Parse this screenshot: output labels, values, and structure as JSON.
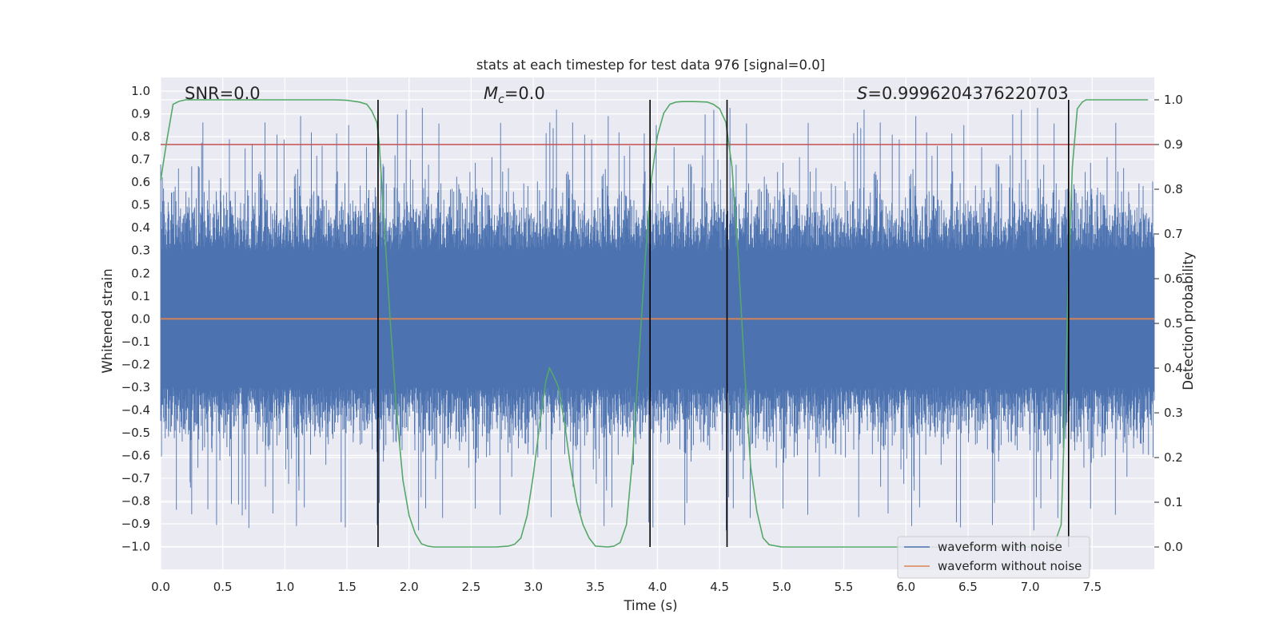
{
  "chart_data": {
    "type": "line",
    "title": "stats at each timestep for test data 976 [signal=0.0]",
    "xlabel": "Time (s)",
    "ylabel_left": "Whitened strain",
    "ylabel_right": "Detection probability",
    "xlim": [
      0.0,
      8.0
    ],
    "ylim_left": [
      -1.1,
      1.06
    ],
    "ylim_right": [
      -0.05,
      1.05
    ],
    "x_ticks": [
      "0.0",
      "0.5",
      "1.0",
      "1.5",
      "2.0",
      "2.5",
      "3.0",
      "3.5",
      "4.0",
      "4.5",
      "5.0",
      "5.5",
      "6.0",
      "6.5",
      "7.0",
      "7.5"
    ],
    "y_ticks_left": [
      "1.0",
      "0.9",
      "0.8",
      "0.7",
      "0.6",
      "0.5",
      "0.4",
      "0.3",
      "0.2",
      "0.1",
      "0.0",
      "−0.1",
      "−0.2",
      "−0.3",
      "−0.4",
      "−0.5",
      "−0.6",
      "−0.7",
      "−0.8",
      "−0.9",
      "−1.0"
    ],
    "y_ticks_right": [
      "1.0",
      "0.9",
      "0.8",
      "0.7",
      "0.6",
      "0.5",
      "0.4",
      "0.3",
      "0.2",
      "0.1",
      "0.0"
    ],
    "grid": true,
    "legend_position": "lower-right",
    "annotations": {
      "snr": "SNR=0.0",
      "mc_symbol": "M",
      "mc_sub": "c",
      "mc_value": "=0.0",
      "s_symbol": "S",
      "s_value": "=0.9996204376220703"
    },
    "series": [
      {
        "name": "waveform with noise",
        "color": "#4c72b0",
        "style": "dense noise, typical |strain| ~0.4, peaks up to ~0.95 and down to ~-0.99"
      },
      {
        "name": "waveform without noise",
        "color": "#dd8452",
        "values_constant": 0.0
      }
    ],
    "threshold": {
      "axis": "right",
      "value": 0.9,
      "color": "#c44e52"
    },
    "trigger_lines_x": [
      1.75,
      3.94,
      4.56,
      7.31
    ],
    "trigger_line_color": "#000000",
    "detection_probability": {
      "color": "#55a868",
      "x": [
        0.0,
        0.05,
        0.1,
        0.15,
        0.2,
        0.3,
        0.5,
        0.8,
        1.0,
        1.2,
        1.4,
        1.5,
        1.6,
        1.66,
        1.7,
        1.74,
        1.76,
        1.8,
        1.85,
        1.9,
        1.95,
        2.0,
        2.05,
        2.1,
        2.15,
        2.2,
        2.3,
        2.5,
        2.7,
        2.8,
        2.85,
        2.9,
        2.95,
        3.0,
        3.05,
        3.1,
        3.13,
        3.15,
        3.2,
        3.25,
        3.3,
        3.35,
        3.4,
        3.45,
        3.5,
        3.6,
        3.65,
        3.7,
        3.75,
        3.8,
        3.85,
        3.9,
        3.95,
        4.0,
        4.05,
        4.1,
        4.15,
        4.2,
        4.3,
        4.4,
        4.45,
        4.5,
        4.55,
        4.6,
        4.65,
        4.7,
        4.75,
        4.8,
        4.85,
        4.9,
        5.0,
        5.5,
        6.0,
        6.5,
        7.0,
        7.1,
        7.2,
        7.25,
        7.28,
        7.31,
        7.34,
        7.38,
        7.42,
        7.45,
        7.5,
        7.7,
        7.95
      ],
      "y": [
        0.82,
        0.91,
        0.99,
        0.997,
        1.0,
        1.0,
        1.0,
        1.0,
        1.0,
        1.0,
        1.0,
        0.999,
        0.995,
        0.99,
        0.975,
        0.95,
        0.9,
        0.72,
        0.5,
        0.3,
        0.15,
        0.07,
        0.03,
        0.007,
        0.002,
        0.0,
        0.0,
        0.0,
        0.0,
        0.002,
        0.006,
        0.02,
        0.07,
        0.16,
        0.27,
        0.37,
        0.4,
        0.39,
        0.36,
        0.28,
        0.18,
        0.1,
        0.05,
        0.02,
        0.002,
        0.0,
        0.002,
        0.01,
        0.05,
        0.2,
        0.42,
        0.64,
        0.82,
        0.92,
        0.97,
        0.99,
        0.995,
        0.996,
        0.996,
        0.995,
        0.99,
        0.98,
        0.95,
        0.85,
        0.65,
        0.4,
        0.18,
        0.08,
        0.02,
        0.005,
        0.0,
        0.0,
        0.0,
        0.0,
        0.0,
        0.0,
        0.01,
        0.05,
        0.3,
        0.62,
        0.85,
        0.98,
        0.995,
        1.0,
        1.0,
        1.0,
        1.0
      ]
    }
  }
}
